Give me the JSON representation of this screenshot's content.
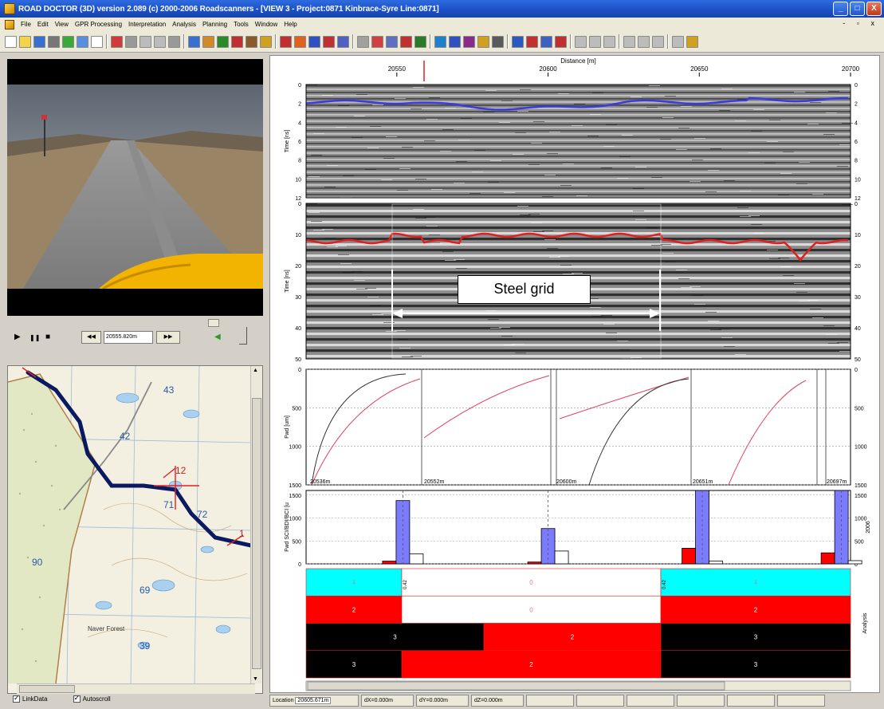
{
  "window": {
    "title": "ROAD DOCTOR (3D) version 2.089 (c) 2000-2006 Roadscanners - [VIEW 3 - Project:0871 Kinbrace-Syre Line:0871]",
    "min_label": "_",
    "max_label": "□",
    "close_label": "X"
  },
  "menu": [
    "File",
    "Edit",
    "View",
    "GPR Processing",
    "Interpretation",
    "Analysis",
    "Planning",
    "Tools",
    "Window",
    "Help"
  ],
  "mdi_controls": "- ▫ x",
  "player": {
    "play": "▶",
    "pause": "❚❚",
    "stop": "■",
    "position": "20555.820m",
    "back_label": "◀◀",
    "fwd_label": "▶▶"
  },
  "map": {
    "labels": [
      "43",
      "42",
      "12",
      "71",
      "72",
      "1",
      "69",
      "39",
      "90",
      "Naver Forest"
    ]
  },
  "checks": {
    "linkdata": "LinkData",
    "autoscroll": "Autoscroll"
  },
  "distance": {
    "title": "Distance [m]",
    "ticks": [
      {
        "v": 20550,
        "label": "20550"
      },
      {
        "v": 20600,
        "label": "20600"
      },
      {
        "v": 20650,
        "label": "20650"
      },
      {
        "v": 20700,
        "label": "20700"
      }
    ]
  },
  "gpr1": {
    "ylabel": "Time [ns]",
    "ticks": [
      "0",
      "2",
      "4",
      "6",
      "8",
      "10",
      "12"
    ]
  },
  "gpr2": {
    "ylabel": "Time [ns]",
    "ticks": [
      "0",
      "10",
      "20",
      "30",
      "40",
      "50"
    ]
  },
  "annotation": "Steel grid",
  "fwd": {
    "ylabel": "Fwd [um]",
    "ticks": [
      "0",
      "500",
      "1000",
      "1500"
    ],
    "labels": [
      "20552m",
      "20600m",
      "20651m",
      "20697m",
      "20536m"
    ]
  },
  "chart_data": {
    "type": "bar",
    "ylabel": "Fwd SCI/BDI/BCI [u",
    "right_label": "2006",
    "ylim": [
      0,
      1600
    ],
    "ticks": [
      "0",
      "500",
      "1000",
      "1500"
    ],
    "groups": [
      {
        "x": 20552,
        "values": [
          60,
          1380,
          220
        ]
      },
      {
        "x": 20600,
        "values": [
          40,
          770,
          280
        ]
      },
      {
        "x": 20651,
        "values": [
          340,
          1600,
          60
        ]
      },
      {
        "x": 20697,
        "values": [
          240,
          1600,
          70
        ]
      }
    ],
    "colors": [
      "#ff0000",
      "#7b7bff",
      "#ffffff"
    ]
  },
  "analysis": {
    "label": "Analysis",
    "rows": [
      {
        "cells": [
          {
            "text": "4",
            "bg": "#00ffff"
          },
          {
            "text": "0",
            "bg": "#ffffff"
          },
          {
            "text": "4",
            "bg": "#00ffff"
          }
        ]
      },
      {
        "cells": [
          {
            "text": "2",
            "bg": "#ff0000"
          },
          {
            "text": "0",
            "bg": "#ffffff"
          },
          {
            "text": "2",
            "bg": "#ff0000"
          }
        ]
      },
      {
        "cells": [
          {
            "text": "3",
            "bg": "#000000"
          },
          {
            "text": "2",
            "bg": "#ff0000"
          },
          {
            "text": "3",
            "bg": "#000000"
          }
        ]
      },
      {
        "cells": [
          {
            "text": "3",
            "bg": "#000000"
          },
          {
            "text": "2",
            "bg": "#ff0000"
          },
          {
            "text": "3",
            "bg": "#000000"
          }
        ]
      }
    ],
    "marker": "0.42"
  },
  "status": {
    "location_label": "Location",
    "location_value": "20605.671m",
    "dx": "dX=0.000m",
    "dy": "dY=0.000m",
    "dz": "dZ=0.000m"
  }
}
